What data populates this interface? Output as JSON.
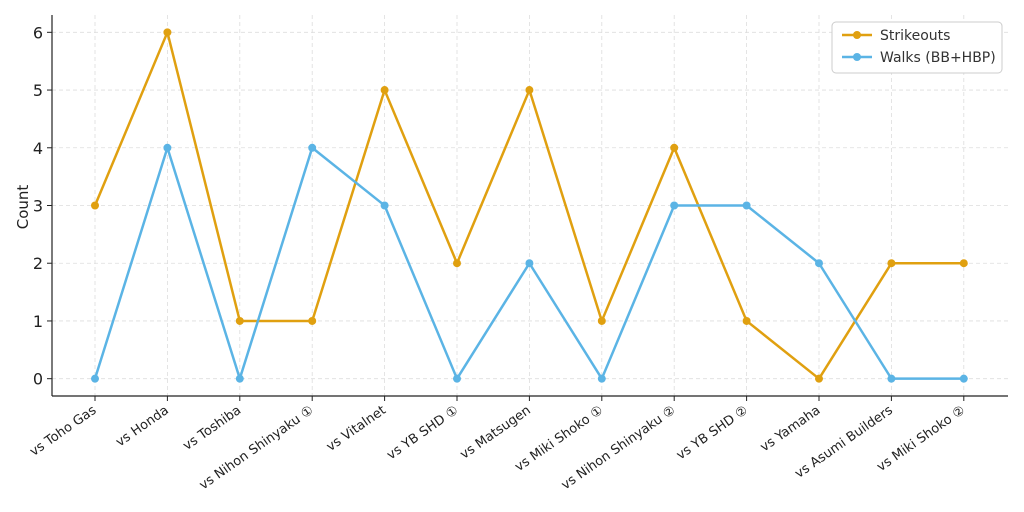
{
  "chart_data": {
    "type": "line",
    "title": "",
    "xlabel": "",
    "ylabel": "Count",
    "categories": [
      "vs Toho Gas",
      "vs Honda",
      "vs Toshiba",
      "vs Nihon Shinyaku ①",
      "vs Vitalnet",
      "vs YB SHD ①",
      "vs Matsugen",
      "vs Miki Shoko ①",
      "vs Nihon Shinyaku ②",
      "vs YB SHD ②",
      "vs Yamaha",
      "vs Asumi Builders",
      "vs Miki Shoko ②"
    ],
    "series": [
      {
        "name": "Strikeouts",
        "color": "#E0A010",
        "values": [
          3,
          6,
          1,
          1,
          5,
          2,
          5,
          1,
          4,
          1,
          0,
          2,
          2
        ]
      },
      {
        "name": "Walks (BB+HBP)",
        "color": "#5BB4E5",
        "values": [
          0,
          4,
          0,
          4,
          3,
          0,
          2,
          0,
          3,
          3,
          2,
          0,
          0
        ]
      }
    ],
    "yticks": [
      0,
      1,
      2,
      3,
      4,
      5,
      6
    ],
    "ylim": [
      -0.3,
      6.3
    ],
    "grid": true,
    "legend": "top-right"
  }
}
